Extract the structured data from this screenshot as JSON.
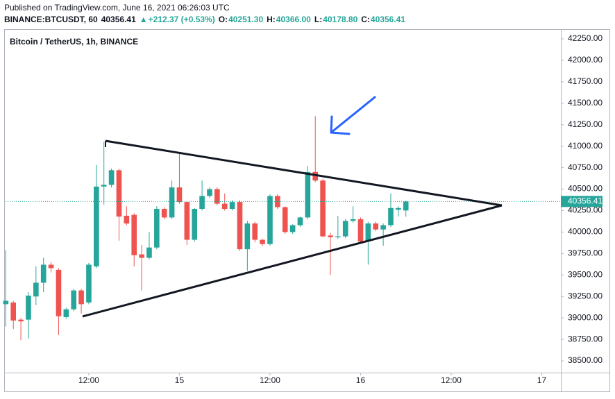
{
  "chart_data": {
    "type": "candlestick",
    "subtitle": "Published on TradingView.com, June 16, 2021 06:26:03 UTC",
    "info_line": [
      {
        "text": "BINANCE:BTCUSDT, 60",
        "color": "#131722"
      },
      {
        "text": "40356.41",
        "color": "#131722"
      },
      {
        "text": "▲",
        "color": "#26a69a"
      },
      {
        "text": "+212.37 (+0.53%)",
        "color": "#26a69a"
      },
      {
        "text": "O:",
        "color": "#131722"
      },
      {
        "text": "40251.30",
        "color": "#26a69a"
      },
      {
        "text": "H:",
        "color": "#131722"
      },
      {
        "text": "40366.00",
        "color": "#26a69a"
      },
      {
        "text": "L:",
        "color": "#131722"
      },
      {
        "text": "40178.80",
        "color": "#26a69a"
      },
      {
        "text": "C:",
        "color": "#131722"
      },
      {
        "text": "40356.41",
        "color": "#26a69a"
      }
    ],
    "title": "Bitcoin / TetherUS, 1h, BINANCE",
    "x": [
      1,
      2,
      3,
      4,
      5,
      6,
      7,
      8,
      9,
      10,
      11,
      12,
      13,
      14,
      15,
      16,
      17,
      18,
      19,
      20,
      21,
      22,
      23,
      24,
      25,
      26,
      27,
      28,
      29,
      30,
      31,
      32,
      33,
      34,
      35,
      36,
      37,
      38,
      39,
      40,
      41,
      42,
      43,
      44,
      45,
      46,
      47,
      48,
      49,
      50,
      51,
      52,
      53,
      54
    ],
    "open": [
      39160,
      39180,
      38980,
      38980,
      39250,
      39410,
      39620,
      39560,
      39010,
      39100,
      39320,
      39180,
      39600,
      40530,
      40550,
      40720,
      40190,
      40200,
      39740,
      39700,
      39820,
      40270,
      40170,
      40520,
      40350,
      39910,
      40270,
      40420,
      40500,
      40330,
      40270,
      40350,
      39800,
      40100,
      39910,
      39860,
      40420,
      40290,
      40000,
      40080,
      40170,
      40700,
      40600,
      39960,
      39940,
      39950,
      40130,
      40150,
      39890,
      40100,
      40030,
      40080,
      40260,
      40251.3
    ],
    "high": [
      39790,
      39200,
      39000,
      39300,
      39600,
      39700,
      39650,
      39580,
      39120,
      39340,
      39340,
      39640,
      40780,
      41050,
      40740,
      40740,
      40300,
      40220,
      39850,
      40000,
      40300,
      40290,
      40600,
      40920,
      40360,
      40280,
      40600,
      40520,
      40520,
      40450,
      40370,
      40370,
      40130,
      40120,
      39920,
      40440,
      40440,
      40300,
      40090,
      40180,
      40770,
      41350,
      40620,
      39990,
      40190,
      40150,
      40300,
      40170,
      40120,
      40120,
      40100,
      40450,
      40300,
      40366
    ],
    "low": [
      38900,
      38870,
      38740,
      38760,
      39150,
      39300,
      39530,
      38800,
      38990,
      39080,
      39050,
      39160,
      39580,
      40320,
      40520,
      39900,
      40080,
      39600,
      39320,
      39680,
      39800,
      40150,
      40150,
      40330,
      39850,
      39890,
      40250,
      40400,
      40310,
      40250,
      40250,
      39780,
      39550,
      39880,
      39840,
      39840,
      40270,
      39980,
      39980,
      40060,
      40150,
      40580,
      39940,
      39500,
      39920,
      39930,
      40110,
      39870,
      39620,
      40010,
      39840,
      40060,
      40180,
      40178.8
    ],
    "close": [
      39200,
      38970,
      38960,
      39260,
      39410,
      39620,
      39580,
      39020,
      39100,
      39320,
      39160,
      39620,
      40530,
      40550,
      40720,
      40180,
      40100,
      39730,
      39700,
      39820,
      40270,
      40170,
      40520,
      40350,
      39910,
      40270,
      40420,
      40500,
      40330,
      40270,
      40350,
      39800,
      40100,
      39910,
      39860,
      40420,
      40290,
      40000,
      40080,
      40170,
      40700,
      40600,
      39950,
      39940,
      39950,
      40130,
      40150,
      39890,
      40100,
      40030,
      40080,
      40280,
      40280,
      40356.41
    ],
    "up_color": "#26a69a",
    "down_color": "#ef5350",
    "last_price": {
      "value": 40356.41,
      "label": "40356.41"
    },
    "xlim": [
      0.97,
      74.53
    ],
    "xticks": [
      {
        "value": 12,
        "label": "12:00"
      },
      {
        "value": 24,
        "label": "15"
      },
      {
        "value": 36,
        "label": "12:00"
      },
      {
        "value": 48,
        "label": "16"
      },
      {
        "value": 60,
        "label": "12:00"
      },
      {
        "value": 72,
        "label": "17"
      }
    ],
    "ylim": [
      38363,
      42363
    ],
    "yticks": [
      {
        "value": 38500,
        "label": "38500.00"
      },
      {
        "value": 38750,
        "label": "38750.00"
      },
      {
        "value": 39000,
        "label": "39000.00"
      },
      {
        "value": 39250,
        "label": "39250.00"
      },
      {
        "value": 39500,
        "label": "39500.00"
      },
      {
        "value": 39750,
        "label": "39750.00"
      },
      {
        "value": 40000,
        "label": "40000.00"
      },
      {
        "value": 40250,
        "label": "40250.00"
      },
      {
        "value": 40500,
        "label": "40500.00"
      },
      {
        "value": 40750,
        "label": "40750.00"
      },
      {
        "value": 41000,
        "label": "41000.00"
      },
      {
        "value": 41250,
        "label": "41250.00"
      },
      {
        "value": 41500,
        "label": "41500.00"
      },
      {
        "value": 41750,
        "label": "41750.00"
      },
      {
        "value": 42000,
        "label": "42000.00"
      },
      {
        "value": 42250,
        "label": "42250.00"
      }
    ]
  }
}
